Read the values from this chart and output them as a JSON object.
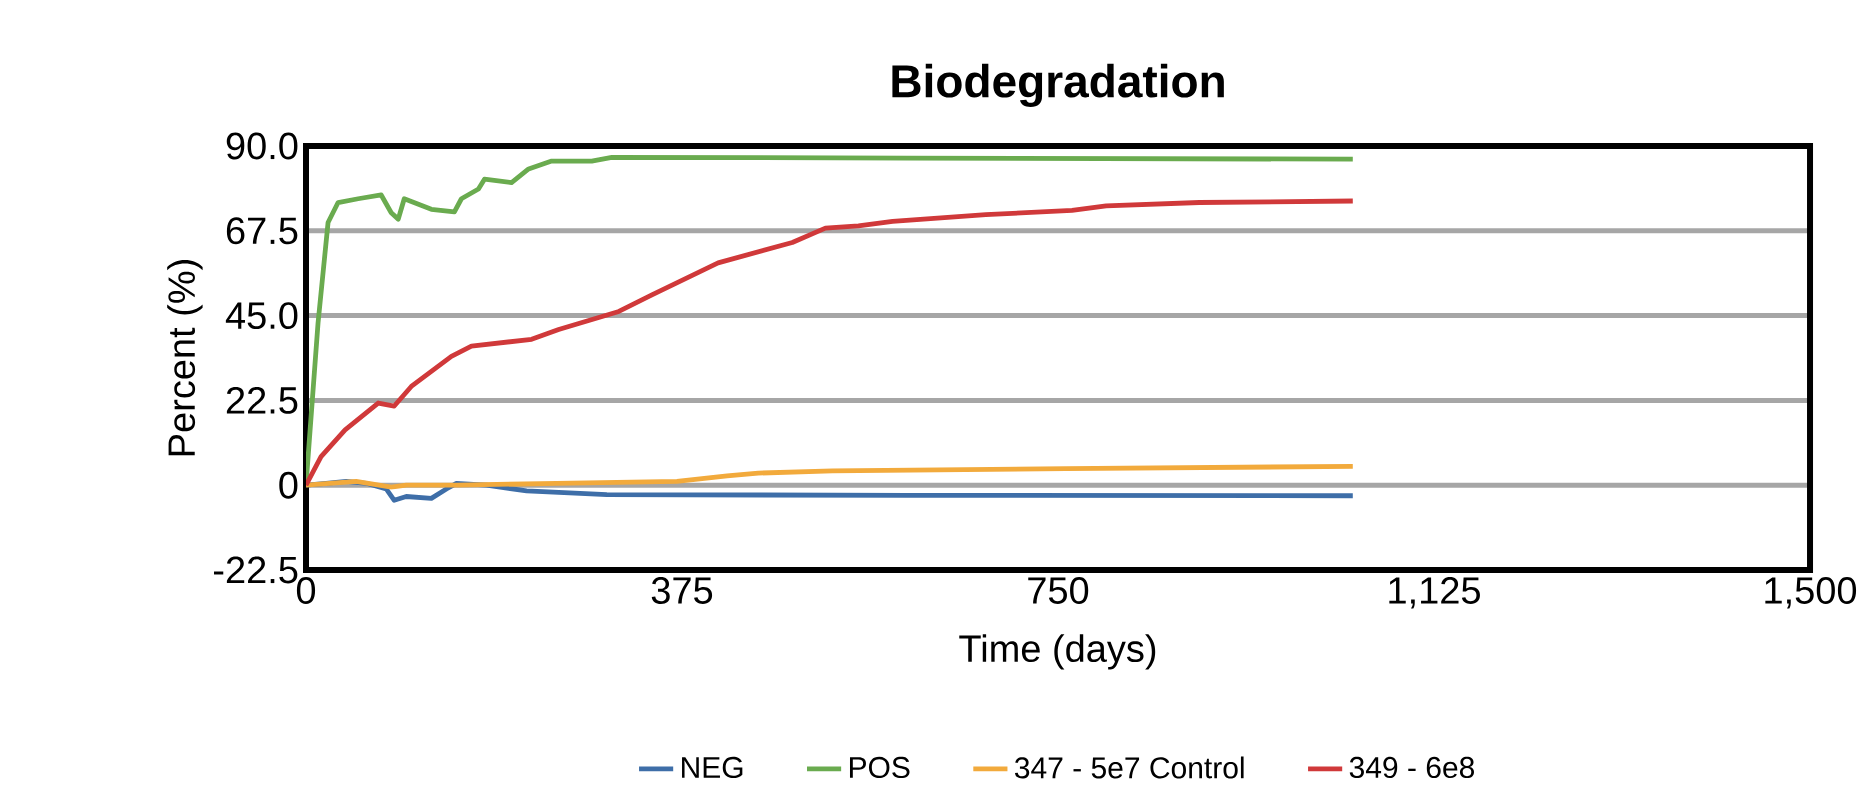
{
  "chart_data": {
    "type": "line",
    "title": "Biodegradation",
    "xlabel": "Time (days)",
    "ylabel": "Percent (%)",
    "xlim": [
      0,
      1500
    ],
    "xticks": [
      0,
      375,
      750,
      {
        "value": 1125,
        "label": "1,125"
      },
      {
        "value": 1500,
        "label": "1,500"
      }
    ],
    "ylim": [
      -22.5,
      90
    ],
    "yticks": [
      {
        "value": -22.5,
        "label": "-22.5"
      },
      {
        "value": 0,
        "label": "0"
      },
      {
        "value": 22.5,
        "label": "22.5"
      },
      {
        "value": 45,
        "label": "45.0"
      },
      {
        "value": 67.5,
        "label": "67.5"
      },
      {
        "value": 90,
        "label": "90.0"
      }
    ],
    "grid": "y",
    "legend": "bottom",
    "series": [
      {
        "name": "NEG",
        "color": "#3e6ea8",
        "x": [
          0,
          20,
          40,
          60,
          80,
          88,
          100,
          125,
          140,
          150,
          180,
          220,
          300,
          600,
          1044
        ],
        "values": [
          0,
          0.5,
          1,
          0.5,
          -1,
          -4,
          -3,
          -3.5,
          -1,
          0.5,
          0,
          -1.5,
          -2.5,
          -2.7,
          -2.8
        ]
      },
      {
        "name": "POS",
        "color": "#6aab4f",
        "x": [
          0,
          12,
          22,
          32,
          52,
          75,
          85,
          92,
          98,
          125,
          148,
          155,
          172,
          178,
          205,
          222,
          245,
          285,
          305,
          600,
          1044
        ],
        "values": [
          0,
          43,
          69.7,
          75,
          76,
          77,
          72.3,
          70.6,
          76,
          73.2,
          72.5,
          76,
          78.6,
          81.2,
          80.3,
          83.9,
          86,
          86,
          87,
          86.8,
          86.5
        ]
      },
      {
        "name": "347 - 5e7 Control",
        "color": "#f2aa3c",
        "x": [
          0,
          50,
          85,
          100,
          150,
          250,
          370,
          420,
          451,
          525,
          758,
          1044
        ],
        "values": [
          0,
          1,
          -0.5,
          0,
          0,
          0.5,
          1,
          2.5,
          3.2,
          3.8,
          4.4,
          5.0
        ]
      },
      {
        "name": "349 - 6e8",
        "color": "#d0393a",
        "x": [
          0,
          15,
          39,
          72,
          88,
          105,
          145,
          165,
          225,
          252,
          312,
          345,
          411,
          485,
          518,
          551,
          585,
          678,
          764,
          798,
          891,
          1044
        ],
        "values": [
          0,
          7.6,
          14.7,
          21.8,
          21,
          26.2,
          34.2,
          36.9,
          38.7,
          41.3,
          46.1,
          50.5,
          59,
          64.4,
          68.2,
          68.8,
          70,
          71.8,
          72.9,
          74.1,
          75,
          75.4
        ]
      }
    ]
  }
}
